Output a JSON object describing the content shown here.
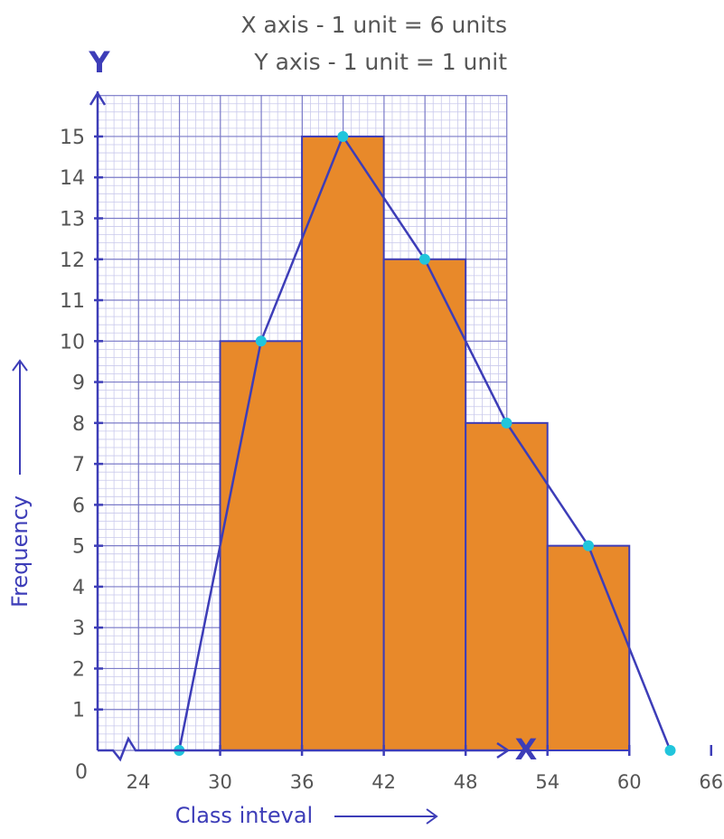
{
  "notes": {
    "x_scale": "X axis - 1 unit = 6 units",
    "y_scale": "Y axis - 1 unit = 1 unit"
  },
  "axis_letters": {
    "x": "X",
    "y": "Y"
  },
  "labels": {
    "origin": "0",
    "xlabel": "Class inteval",
    "ylabel": "Frequency"
  },
  "colors": {
    "bar_fill": "#E8892A",
    "axis": "#3D3DB8",
    "grid_major": "#7B7BC8",
    "grid_minor": "#C9C9EC",
    "point": "#21C5DC",
    "tick_text": "#555555",
    "note_text": "#555555"
  },
  "chart_data": {
    "type": "bar",
    "subtype": "histogram with frequency polygon",
    "xlabel": "Class inteval",
    "ylabel": "Frequency",
    "x_ticks": [
      24,
      30,
      36,
      42,
      48,
      54,
      60,
      66
    ],
    "y_ticks": [
      1,
      2,
      3,
      4,
      5,
      6,
      7,
      8,
      9,
      10,
      11,
      12,
      13,
      14,
      15
    ],
    "ylim": [
      0,
      16
    ],
    "x_axis_break": true,
    "grid": true,
    "bins": [
      {
        "from": 30,
        "to": 36,
        "value": 10
      },
      {
        "from": 36,
        "to": 42,
        "value": 15
      },
      {
        "from": 42,
        "to": 48,
        "value": 12
      },
      {
        "from": 48,
        "to": 54,
        "value": 8
      },
      {
        "from": 54,
        "to": 60,
        "value": 5
      }
    ],
    "polygon": {
      "x": [
        27,
        33,
        39,
        45,
        51,
        57,
        63
      ],
      "y": [
        0,
        10,
        15,
        12,
        8,
        5,
        0
      ]
    }
  }
}
